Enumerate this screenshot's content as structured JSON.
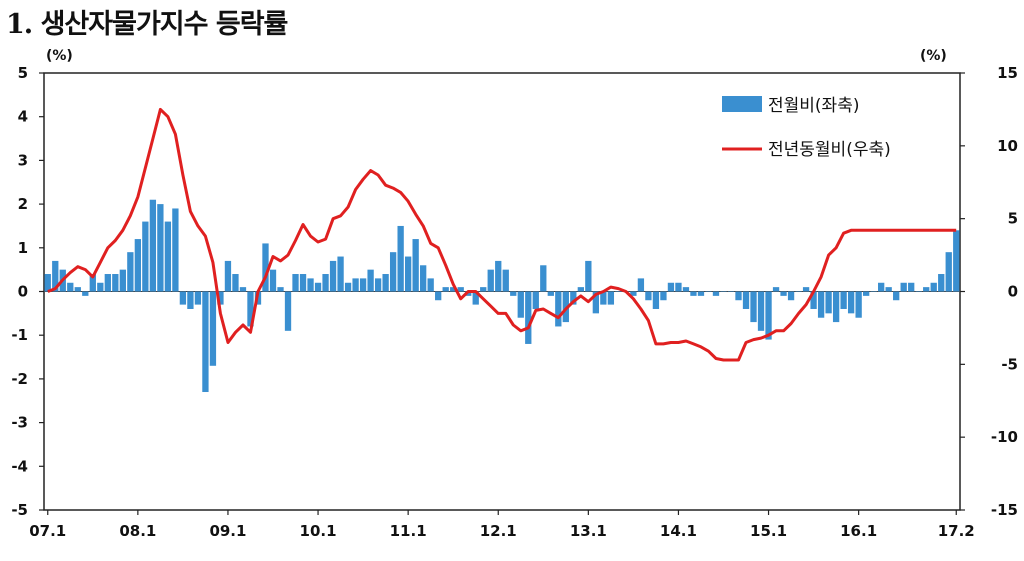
{
  "title": "1. 생산자물가지수 등락률",
  "chart_data": {
    "type": "bar+line",
    "left_unit": "(%)",
    "right_unit": "(%)",
    "x_tick_labels": [
      "07.1",
      "08.1",
      "09.1",
      "10.1",
      "11.1",
      "12.1",
      "13.1",
      "14.1",
      "15.1",
      "16.1",
      "17.2"
    ],
    "left_axis": {
      "min": -5,
      "max": 5,
      "ticks": [
        5,
        4,
        3,
        2,
        1,
        0,
        -1,
        -2,
        -3,
        -4,
        -5
      ]
    },
    "right_axis": {
      "min": -15,
      "max": 15,
      "ticks": [
        15,
        10,
        5,
        0,
        -5,
        -10,
        -15
      ]
    },
    "legend_position": "top-right",
    "series": [
      {
        "name": "전월비(좌축)",
        "type": "bar",
        "axis": "left",
        "color": "#3a8fd0",
        "x": [
          "07.1",
          "07.2",
          "07.3",
          "07.4",
          "07.5",
          "07.6",
          "07.7",
          "07.8",
          "07.9",
          "07.10",
          "07.11",
          "07.12",
          "08.1",
          "08.2",
          "08.3",
          "08.4",
          "08.5",
          "08.6",
          "08.7",
          "08.8",
          "08.9",
          "08.10",
          "08.11",
          "08.12",
          "09.1",
          "09.2",
          "09.3",
          "09.4",
          "09.5",
          "09.6",
          "09.7",
          "09.8",
          "09.9",
          "09.10",
          "09.11",
          "09.12",
          "10.1",
          "10.2",
          "10.3",
          "10.4",
          "10.5",
          "10.6",
          "10.7",
          "10.8",
          "10.9",
          "10.10",
          "10.11",
          "10.12",
          "11.1",
          "11.2",
          "11.3",
          "11.4",
          "11.5",
          "11.6",
          "11.7",
          "11.8",
          "11.9",
          "11.10",
          "11.11",
          "11.12",
          "12.1",
          "12.2",
          "12.3",
          "12.4",
          "12.5",
          "12.6",
          "12.7",
          "12.8",
          "12.9",
          "12.10",
          "12.11",
          "12.12",
          "13.1",
          "13.2",
          "13.3",
          "13.4",
          "13.5",
          "13.6",
          "13.7",
          "13.8",
          "13.9",
          "13.10",
          "13.11",
          "13.12",
          "14.1",
          "14.2",
          "14.3",
          "14.4",
          "14.5",
          "14.6",
          "14.7",
          "14.8",
          "14.9",
          "14.10",
          "14.11",
          "14.12",
          "15.1",
          "15.2",
          "15.3",
          "15.4",
          "15.5",
          "15.6",
          "15.7",
          "15.8",
          "15.9",
          "15.10",
          "15.11",
          "15.12",
          "16.1",
          "16.2",
          "16.3",
          "16.4",
          "16.5",
          "16.6",
          "16.7",
          "16.8",
          "16.9",
          "16.10",
          "16.11",
          "16.12",
          "17.1",
          "17.2"
        ],
        "values": [
          0.4,
          0.7,
          0.5,
          0.2,
          0.1,
          -0.1,
          0.4,
          0.2,
          0.4,
          0.4,
          0.5,
          0.9,
          1.2,
          1.6,
          2.1,
          2.0,
          1.6,
          1.9,
          -0.3,
          -0.4,
          -0.3,
          -2.3,
          -1.7,
          -0.3,
          0.7,
          0.4,
          0.1,
          -0.8,
          -0.3,
          1.1,
          0.5,
          0.1,
          -0.9,
          0.4,
          0.4,
          0.3,
          0.2,
          0.4,
          0.7,
          0.8,
          0.2,
          0.3,
          0.3,
          0.5,
          0.3,
          0.4,
          0.9,
          1.5,
          0.8,
          1.2,
          0.6,
          0.3,
          -0.2,
          0.1,
          0.1,
          0.1,
          -0.1,
          -0.3,
          0.1,
          0.5,
          0.7,
          0.5,
          -0.1,
          -0.6,
          -1.2,
          -0.4,
          0.6,
          -0.1,
          -0.8,
          -0.7,
          -0.3,
          0.1,
          0.7,
          -0.5,
          -0.3,
          -0.3,
          0.0,
          0.0,
          -0.1,
          0.3,
          -0.2,
          -0.4,
          -0.2,
          0.2,
          0.2,
          0.1,
          -0.1,
          -0.1,
          0.0,
          -0.1,
          0.0,
          0.0,
          -0.2,
          -0.4,
          -0.7,
          -0.9,
          -1.1,
          0.1,
          -0.1,
          -0.2,
          0.0,
          0.1,
          -0.4,
          -0.6,
          -0.5,
          -0.7,
          -0.4,
          -0.5,
          -0.6,
          -0.1,
          0.0,
          0.2,
          0.1,
          -0.2,
          0.2,
          0.2,
          0.0,
          0.1,
          0.2,
          0.4,
          0.9,
          1.4
        ]
      },
      {
        "name": "전년동월비(우축)",
        "type": "line",
        "axis": "right",
        "color": "#e02020",
        "x": [
          "07.1",
          "07.2",
          "07.3",
          "07.4",
          "07.5",
          "07.6",
          "07.7",
          "07.8",
          "07.9",
          "07.10",
          "07.11",
          "07.12",
          "08.1",
          "08.2",
          "08.3",
          "08.4",
          "08.5",
          "08.6",
          "08.7",
          "08.8",
          "08.9",
          "08.10",
          "08.11",
          "08.12",
          "09.1",
          "09.2",
          "09.3",
          "09.4",
          "09.5",
          "09.6",
          "09.7",
          "09.8",
          "09.9",
          "09.10",
          "09.11",
          "09.12",
          "10.1",
          "10.2",
          "10.3",
          "10.4",
          "10.5",
          "10.6",
          "10.7",
          "10.8",
          "10.9",
          "10.10",
          "10.11",
          "10.12",
          "11.1",
          "11.2",
          "11.3",
          "11.4",
          "11.5",
          "11.6",
          "11.7",
          "11.8",
          "11.9",
          "11.10",
          "11.11",
          "11.12",
          "12.1",
          "12.2",
          "12.3",
          "12.4",
          "12.5",
          "12.6",
          "12.7",
          "12.8",
          "12.9",
          "12.10",
          "12.11",
          "12.12",
          "13.1",
          "13.2",
          "13.3",
          "13.4",
          "13.5",
          "13.6",
          "13.7",
          "13.8",
          "13.9",
          "13.10",
          "13.11",
          "13.12",
          "14.1",
          "14.2",
          "14.3",
          "14.4",
          "14.5",
          "14.6",
          "14.7",
          "14.8",
          "14.9",
          "14.10",
          "14.11",
          "14.12",
          "15.1",
          "15.2",
          "15.3",
          "15.4",
          "15.5",
          "15.6",
          "15.7",
          "15.8",
          "15.9",
          "15.10",
          "15.11",
          "15.12",
          "16.1",
          "16.2",
          "16.3",
          "16.4",
          "16.5",
          "16.6",
          "16.7",
          "16.8",
          "16.9",
          "16.10",
          "16.11",
          "16.12",
          "17.1",
          "17.2"
        ],
        "values": [
          0.0,
          0.2,
          0.8,
          1.3,
          1.7,
          1.5,
          1.0,
          2.0,
          3.0,
          3.5,
          4.2,
          5.2,
          6.5,
          8.5,
          10.5,
          12.5,
          12.0,
          10.8,
          8.0,
          5.5,
          4.5,
          3.8,
          2.0,
          -1.5,
          -3.5,
          -2.8,
          -2.3,
          -2.8,
          0.0,
          1.0,
          2.4,
          2.1,
          2.5,
          3.5,
          4.6,
          3.8,
          3.4,
          3.6,
          5.0,
          5.2,
          5.8,
          7.0,
          7.7,
          8.3,
          8.0,
          7.3,
          7.1,
          6.8,
          6.2,
          5.3,
          4.5,
          3.3,
          3.0,
          1.8,
          0.5,
          -0.5,
          0.0,
          0.0,
          -0.5,
          -1.0,
          -1.5,
          -1.5,
          -2.3,
          -2.7,
          -2.5,
          -1.3,
          -1.2,
          -1.5,
          -1.8,
          -1.2,
          -0.7,
          -0.3,
          -0.7,
          -0.2,
          0.0,
          0.3,
          0.2,
          0.0,
          -0.5,
          -1.2,
          -2.0,
          -3.6,
          -3.6,
          -3.5,
          -3.5,
          -3.4,
          -3.6,
          -3.8,
          -4.1,
          -4.6,
          -4.7,
          -4.7,
          -4.7,
          -3.5,
          -3.3,
          -3.2,
          -3.0,
          -2.7,
          -2.7,
          -2.2,
          -1.5,
          -0.9,
          0.0,
          1.0,
          2.5,
          3.0,
          4.0,
          4.2,
          4.2,
          4.2,
          4.2,
          4.2,
          4.2,
          4.2,
          4.2,
          4.2,
          4.2,
          4.2,
          4.2,
          4.2,
          4.2,
          4.2
        ]
      }
    ]
  }
}
